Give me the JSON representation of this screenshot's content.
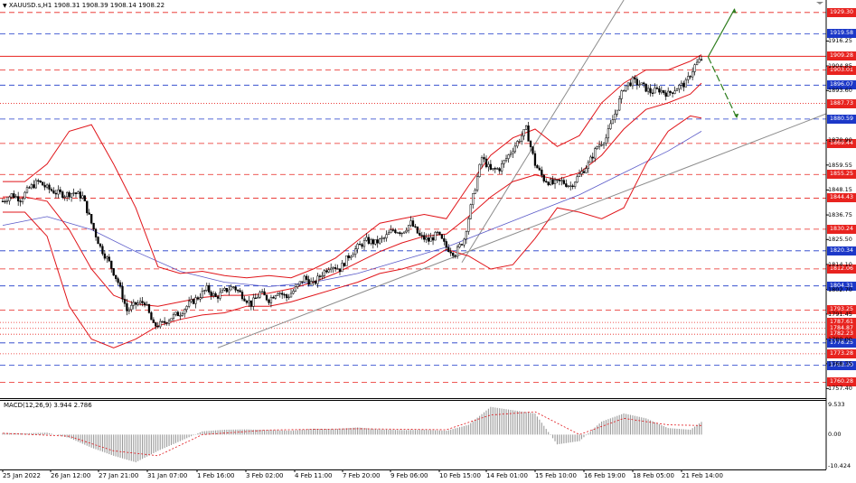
{
  "header": {
    "symbol_text": "XAUUSD.s,H1  1908.31 1908.39 1908.14 1908.22"
  },
  "macd": {
    "title": "MACD(12,26,9) 3.944 2.786",
    "ticks": [
      "9.533",
      "0.00",
      "-10.424"
    ]
  },
  "price_axis_ticks": [
    "1916.25",
    "1904.85",
    "1893.60",
    "1870.90",
    "1859.55",
    "1848.15",
    "1836.75",
    "1825.50",
    "1814.10",
    "1802.70",
    "1791.45",
    "1780.00",
    "1768.75",
    "1757.40"
  ],
  "levels": [
    {
      "value": "1929.30",
      "color": "#e8231f",
      "style": "dash"
    },
    {
      "value": "1919.58",
      "color": "#1c38c8",
      "style": "dash"
    },
    {
      "value": "1909.28",
      "color": "#e8231f",
      "style": "solid"
    },
    {
      "value": "1903.01",
      "color": "#e8231f",
      "style": "dash"
    },
    {
      "value": "1896.07",
      "color": "#1c38c8",
      "style": "dash"
    },
    {
      "value": "1887.73",
      "color": "#e8231f",
      "style": "dot"
    },
    {
      "value": "1880.59",
      "color": "#1c38c8",
      "style": "dash"
    },
    {
      "value": "1869.44",
      "color": "#e8231f",
      "style": "dash"
    },
    {
      "value": "1855.25",
      "color": "#e8231f",
      "style": "dash"
    },
    {
      "value": "1844.43",
      "color": "#e8231f",
      "style": "dash"
    },
    {
      "value": "1830.24",
      "color": "#e8231f",
      "style": "dash"
    },
    {
      "value": "1820.34",
      "color": "#1c38c8",
      "style": "dash"
    },
    {
      "value": "1812.06",
      "color": "#e8231f",
      "style": "dash"
    },
    {
      "value": "1804.31",
      "color": "#1c38c8",
      "style": "dash"
    },
    {
      "value": "1793.25",
      "color": "#e8231f",
      "style": "dash"
    },
    {
      "value": "1787.61",
      "color": "#e8231f",
      "style": "dot"
    },
    {
      "value": "1784.87",
      "color": "#e8231f",
      "style": "dot"
    },
    {
      "value": "1782.23",
      "color": "#e8231f",
      "style": "dot"
    },
    {
      "value": "1778.25",
      "color": "#1c38c8",
      "style": "dash"
    },
    {
      "value": "1773.28",
      "color": "#e8231f",
      "style": "dot"
    },
    {
      "value": "1768.00",
      "color": "#1c38c8",
      "style": "dash"
    },
    {
      "value": "1760.28",
      "color": "#e8231f",
      "style": "dash"
    }
  ],
  "chart_data": {
    "type": "candlestick",
    "symbol": "XAUUSD.s",
    "timeframe": "H1",
    "ylim": [
      1753,
      1935
    ],
    "x_labels": [
      "25 Jan 2022",
      "26 Jan 12:00",
      "27 Jan 21:00",
      "31 Jan 07:00",
      "1 Feb 16:00",
      "3 Feb 02:00",
      "4 Feb 11:00",
      "7 Feb 20:00",
      "9 Feb 06:00",
      "10 Feb 15:00",
      "14 Feb 01:00",
      "15 Feb 10:00",
      "16 Feb 19:00",
      "18 Feb 05:00",
      "21 Feb 14:00"
    ],
    "close_path": [
      [
        0,
        1843
      ],
      [
        4,
        1846
      ],
      [
        8,
        1844
      ],
      [
        12,
        1849
      ],
      [
        16,
        1852
      ],
      [
        20,
        1849
      ],
      [
        24,
        1847
      ],
      [
        28,
        1846
      ],
      [
        32,
        1847
      ],
      [
        36,
        1845
      ],
      [
        40,
        1833
      ],
      [
        44,
        1822
      ],
      [
        48,
        1815
      ],
      [
        52,
        1806
      ],
      [
        56,
        1793
      ],
      [
        60,
        1796
      ],
      [
        64,
        1797
      ],
      [
        68,
        1786
      ],
      [
        72,
        1787
      ],
      [
        76,
        1790
      ],
      [
        80,
        1792
      ],
      [
        84,
        1796
      ],
      [
        88,
        1799
      ],
      [
        92,
        1803
      ],
      [
        96,
        1799
      ],
      [
        100,
        1802
      ],
      [
        104,
        1804
      ],
      [
        108,
        1800
      ],
      [
        112,
        1796
      ],
      [
        116,
        1801
      ],
      [
        120,
        1798
      ],
      [
        124,
        1802
      ],
      [
        128,
        1799
      ],
      [
        132,
        1803
      ],
      [
        136,
        1808
      ],
      [
        140,
        1805
      ],
      [
        144,
        1810
      ],
      [
        148,
        1814
      ],
      [
        152,
        1812
      ],
      [
        156,
        1818
      ],
      [
        160,
        1822
      ],
      [
        164,
        1825
      ],
      [
        168,
        1824
      ],
      [
        172,
        1826
      ],
      [
        176,
        1830
      ],
      [
        180,
        1829
      ],
      [
        184,
        1833
      ],
      [
        188,
        1827
      ],
      [
        192,
        1825
      ],
      [
        196,
        1828
      ],
      [
        200,
        1822
      ],
      [
        204,
        1819
      ],
      [
        208,
        1826
      ],
      [
        212,
        1845
      ],
      [
        216,
        1863
      ],
      [
        220,
        1857
      ],
      [
        224,
        1858
      ],
      [
        228,
        1864
      ],
      [
        232,
        1870
      ],
      [
        236,
        1876
      ],
      [
        240,
        1860
      ],
      [
        244,
        1853
      ],
      [
        248,
        1851
      ],
      [
        252,
        1852
      ],
      [
        256,
        1850
      ],
      [
        260,
        1855
      ],
      [
        264,
        1860
      ],
      [
        268,
        1868
      ],
      [
        272,
        1872
      ],
      [
        276,
        1883
      ],
      [
        280,
        1895
      ],
      [
        284,
        1898
      ],
      [
        288,
        1896
      ],
      [
        292,
        1893
      ],
      [
        296,
        1894
      ],
      [
        300,
        1892
      ],
      [
        304,
        1895
      ],
      [
        308,
        1897
      ],
      [
        312,
        1905
      ],
      [
        315,
        1908
      ]
    ],
    "candles_count": 316,
    "bollinger_bands": {
      "upper": [
        [
          0,
          1852
        ],
        [
          10,
          1852
        ],
        [
          20,
          1860
        ],
        [
          30,
          1875
        ],
        [
          40,
          1878
        ],
        [
          50,
          1860
        ],
        [
          60,
          1840
        ],
        [
          70,
          1813
        ],
        [
          80,
          1810
        ],
        [
          90,
          1811
        ],
        [
          100,
          1809
        ],
        [
          110,
          1808
        ],
        [
          120,
          1809
        ],
        [
          130,
          1808
        ],
        [
          140,
          1812
        ],
        [
          150,
          1817
        ],
        [
          160,
          1825
        ],
        [
          170,
          1833
        ],
        [
          180,
          1835
        ],
        [
          190,
          1837
        ],
        [
          200,
          1835
        ],
        [
          210,
          1850
        ],
        [
          220,
          1864
        ],
        [
          230,
          1872
        ],
        [
          240,
          1876
        ],
        [
          250,
          1868
        ],
        [
          260,
          1873
        ],
        [
          270,
          1888
        ],
        [
          280,
          1897
        ],
        [
          290,
          1903
        ],
        [
          300,
          1903
        ],
        [
          310,
          1907
        ],
        [
          315,
          1910
        ]
      ],
      "middle": [
        [
          0,
          1845
        ],
        [
          10,
          1845
        ],
        [
          20,
          1843
        ],
        [
          30,
          1830
        ],
        [
          40,
          1812
        ],
        [
          50,
          1800
        ],
        [
          60,
          1796
        ],
        [
          70,
          1795
        ],
        [
          80,
          1797
        ],
        [
          90,
          1799
        ],
        [
          100,
          1800
        ],
        [
          110,
          1800
        ],
        [
          120,
          1801
        ],
        [
          130,
          1803
        ],
        [
          140,
          1806
        ],
        [
          150,
          1810
        ],
        [
          160,
          1815
        ],
        [
          170,
          1820
        ],
        [
          180,
          1824
        ],
        [
          190,
          1827
        ],
        [
          200,
          1828
        ],
        [
          210,
          1836
        ],
        [
          220,
          1845
        ],
        [
          230,
          1852
        ],
        [
          240,
          1855
        ],
        [
          250,
          1853
        ],
        [
          260,
          1856
        ],
        [
          270,
          1864
        ],
        [
          280,
          1876
        ],
        [
          290,
          1885
        ],
        [
          300,
          1888
        ],
        [
          310,
          1892
        ],
        [
          315,
          1897
        ]
      ],
      "lower": [
        [
          0,
          1838
        ],
        [
          10,
          1838
        ],
        [
          20,
          1827
        ],
        [
          30,
          1795
        ],
        [
          40,
          1780
        ],
        [
          50,
          1776
        ],
        [
          60,
          1780
        ],
        [
          70,
          1786
        ],
        [
          80,
          1789
        ],
        [
          90,
          1791
        ],
        [
          100,
          1792
        ],
        [
          110,
          1795
        ],
        [
          120,
          1795
        ],
        [
          130,
          1797
        ],
        [
          140,
          1800
        ],
        [
          150,
          1803
        ],
        [
          160,
          1806
        ],
        [
          170,
          1810
        ],
        [
          180,
          1812
        ],
        [
          190,
          1815
        ],
        [
          200,
          1821
        ],
        [
          210,
          1818
        ],
        [
          220,
          1812
        ],
        [
          230,
          1814
        ],
        [
          240,
          1826
        ],
        [
          250,
          1840
        ],
        [
          260,
          1838
        ],
        [
          270,
          1835
        ],
        [
          280,
          1840
        ],
        [
          290,
          1860
        ],
        [
          300,
          1875
        ],
        [
          310,
          1882
        ],
        [
          315,
          1881
        ]
      ]
    },
    "moving_average": [
      [
        0,
        1832
      ],
      [
        20,
        1836
      ],
      [
        40,
        1830
      ],
      [
        60,
        1820
      ],
      [
        80,
        1811
      ],
      [
        100,
        1806
      ],
      [
        120,
        1804
      ],
      [
        140,
        1806
      ],
      [
        160,
        1810
      ],
      [
        180,
        1816
      ],
      [
        200,
        1822
      ],
      [
        220,
        1830
      ],
      [
        240,
        1838
      ],
      [
        260,
        1846
      ],
      [
        280,
        1856
      ],
      [
        300,
        1866
      ],
      [
        315,
        1875
      ]
    ],
    "macd_hist": [
      [
        0,
        0.5
      ],
      [
        10,
        0.4
      ],
      [
        20,
        0.6
      ],
      [
        30,
        -1.0
      ],
      [
        40,
        -4.0
      ],
      [
        50,
        -6.5
      ],
      [
        60,
        -8.5
      ],
      [
        70,
        -5.0
      ],
      [
        80,
        -2.0
      ],
      [
        90,
        1.0
      ],
      [
        100,
        1.5
      ],
      [
        110,
        1.6
      ],
      [
        120,
        1.4
      ],
      [
        130,
        1.2
      ],
      [
        140,
        1.8
      ],
      [
        150,
        1.7
      ],
      [
        160,
        2.2
      ],
      [
        170,
        1.6
      ],
      [
        180,
        1.4
      ],
      [
        190,
        1.5
      ],
      [
        200,
        1.2
      ],
      [
        210,
        3.0
      ],
      [
        220,
        8.5
      ],
      [
        230,
        7.5
      ],
      [
        240,
        6.5
      ],
      [
        250,
        -3.0
      ],
      [
        260,
        -2.0
      ],
      [
        270,
        4.0
      ],
      [
        280,
        6.5
      ],
      [
        290,
        5.0
      ],
      [
        300,
        2.0
      ],
      [
        310,
        1.5
      ],
      [
        315,
        3.9
      ]
    ],
    "macd_signal": [
      [
        0,
        0.4
      ],
      [
        30,
        -0.5
      ],
      [
        50,
        -5.0
      ],
      [
        70,
        -6.5
      ],
      [
        90,
        0.0
      ],
      [
        120,
        1.4
      ],
      [
        160,
        1.8
      ],
      [
        200,
        1.5
      ],
      [
        220,
        6.0
      ],
      [
        240,
        7.0
      ],
      [
        260,
        0.0
      ],
      [
        280,
        5.0
      ],
      [
        300,
        3.0
      ],
      [
        315,
        2.8
      ]
    ]
  }
}
